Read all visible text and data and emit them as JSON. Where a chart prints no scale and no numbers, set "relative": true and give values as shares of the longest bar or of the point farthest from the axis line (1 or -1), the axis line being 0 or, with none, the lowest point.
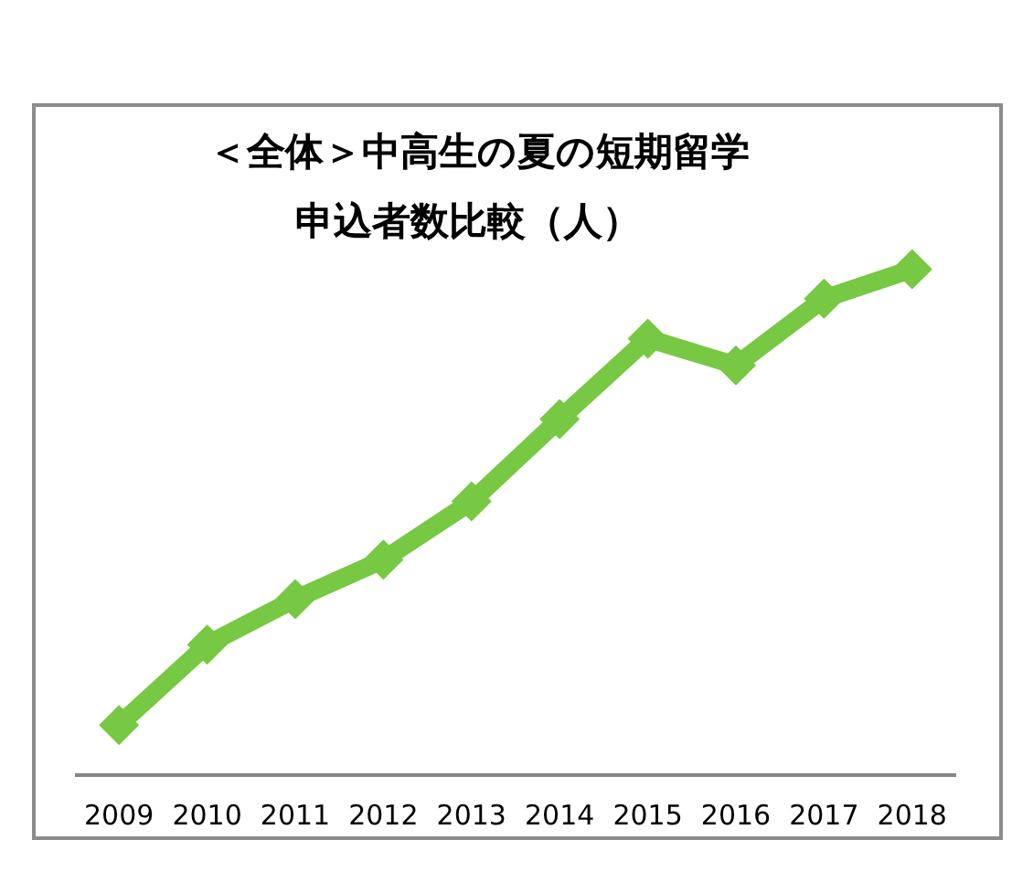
{
  "chart_data": {
    "type": "line",
    "title": "＜全体＞中高生の夏の短期留学",
    "subtitle": "申込者数比較（人）",
    "categories": [
      "2009",
      "2010",
      "2011",
      "2012",
      "2013",
      "2014",
      "2015",
      "2016",
      "2017",
      "2018"
    ],
    "relative": true,
    "marker": "diamond",
    "line_style": "solid",
    "series": [
      {
        "color": "#77c843",
        "values": [
          0.099,
          0.258,
          0.348,
          0.426,
          0.541,
          0.704,
          0.863,
          0.81,
          0.942,
          1
        ]
      }
    ]
  }
}
